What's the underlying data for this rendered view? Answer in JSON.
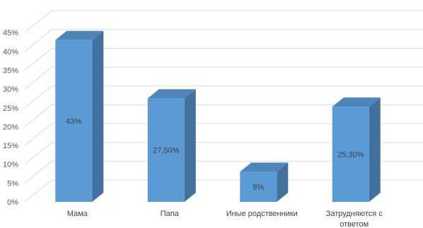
{
  "chart_data": {
    "type": "bar",
    "categories": [
      "Мама",
      "Папа",
      "Иные родственники",
      "Затрудняются с ответом"
    ],
    "category_lines": [
      [
        "Мама"
      ],
      [
        "Папа"
      ],
      [
        "Иные родственники"
      ],
      [
        "Затрудняются с",
        "ответом"
      ]
    ],
    "values": [
      43,
      27.5,
      8,
      25.3
    ],
    "data_labels": [
      "43%",
      "27,50%",
      "8%",
      "25,30%"
    ],
    "y_ticks": [
      "0%",
      "5%",
      "10%",
      "15%",
      "20%",
      "25%",
      "30%",
      "35%",
      "40%",
      "45%"
    ],
    "ylim": [
      0,
      45
    ],
    "title": "",
    "xlabel": "",
    "ylabel": "",
    "grid": true,
    "style": "3d-column",
    "colors": {
      "bar_front": "#5b9bd5",
      "bar_side": "#41719c",
      "bar_top": "#4f86b9",
      "grid": "#d9d9d9",
      "text": "#404040"
    }
  }
}
